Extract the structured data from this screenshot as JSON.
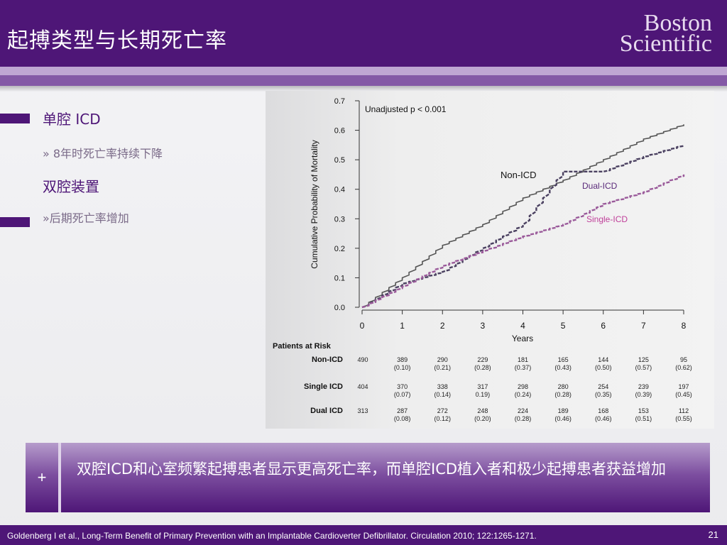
{
  "header": {
    "title": "起搏类型与长期死亡率",
    "logo_line1": "Boston",
    "logo_line2": "Scientific"
  },
  "left": {
    "items": [
      {
        "text": "单腔 ICD",
        "level": "heading"
      },
      {
        "text": "» 8年时死亡率持续下降",
        "level": "sub"
      },
      {
        "text": "双腔装置",
        "level": "heading"
      },
      {
        "text": "»后期死亡率增加",
        "level": "sub"
      }
    ]
  },
  "chart_data": {
    "type": "line",
    "title": "",
    "annotation": "Unadjusted p < 0.001",
    "xlabel": "Years",
    "ylabel": "Cumulative Probability of Mortality",
    "xlim": [
      0,
      8
    ],
    "ylim": [
      0,
      0.7
    ],
    "xticks": [
      "0",
      "1",
      "2",
      "3",
      "4",
      "5",
      "6",
      "7",
      "8"
    ],
    "yticks": [
      "0.0",
      "0.1",
      "0.2",
      "0.3",
      "0.4",
      "0.5",
      "0.6",
      "0.7"
    ],
    "x": [
      0,
      1,
      2,
      3,
      4,
      5,
      6,
      7,
      8
    ],
    "series": [
      {
        "name": "Non-ICD",
        "color": "#555555",
        "style": "solid",
        "values": [
          0,
          0.1,
          0.21,
          0.28,
          0.37,
          0.43,
          0.5,
          0.57,
          0.62
        ]
      },
      {
        "name": "Dual-ICD",
        "color": "#4a4060",
        "style": "dashed",
        "values": [
          0,
          0.08,
          0.12,
          0.2,
          0.28,
          0.46,
          0.46,
          0.51,
          0.55
        ]
      },
      {
        "name": "Single-ICD",
        "color": "#9a5a9a",
        "style": "dashed",
        "values": [
          0,
          0.07,
          0.14,
          0.19,
          0.24,
          0.28,
          0.35,
          0.39,
          0.45
        ]
      }
    ],
    "labels": {
      "non": "Non-ICD",
      "dual": "Dual-ICD",
      "single": "Single-ICD"
    },
    "label_colors": {
      "non": "#111111",
      "dual": "#5a2a7a",
      "single": "#c0409a"
    },
    "risk_table": {
      "title": "Patients at Risk",
      "rows": [
        {
          "name": "Non-ICD",
          "start": "490",
          "counts": [
            "389",
            "290",
            "229",
            "181",
            "165",
            "144",
            "125",
            "95"
          ],
          "probs": [
            "(0.10)",
            "(0.21)",
            "(0.28)",
            "(0.37)",
            "(0.43)",
            "(0.50)",
            "(0.57)",
            "(0.62)"
          ]
        },
        {
          "name": "Single ICD",
          "start": "404",
          "counts": [
            "370",
            "338",
            "317",
            "298",
            "280",
            "254",
            "239",
            "197"
          ],
          "probs": [
            "(0.07)",
            "(0.14)",
            "0.19)",
            "(0.24)",
            "(0.28)",
            "(0.35)",
            "(0.39)",
            "(0.45)"
          ]
        },
        {
          "name": "Dual ICD",
          "start": "313",
          "counts": [
            "287",
            "272",
            "248",
            "224",
            "189",
            "168",
            "153",
            "112"
          ],
          "probs": [
            "(0.08)",
            "(0.12)",
            "(0.20)",
            "(0.28)",
            "(0.46)",
            "(0.46)",
            "(0.51)",
            "(0.55)"
          ]
        }
      ]
    }
  },
  "callout": {
    "plus": "+",
    "text": "双腔ICD和心室频繁起搏患者显示更高死亡率，而单腔ICD植入者和极少起搏患者获益增加"
  },
  "footer": {
    "citation": "Goldenberg I et al., Long-Term Benefit of Primary Prevention with an Implantable Cardioverter Defibrillator. Circulation 2010; 122:1265-1271.",
    "page": "21"
  }
}
